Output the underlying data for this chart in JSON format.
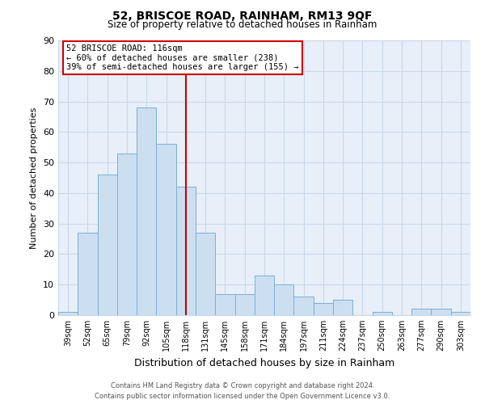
{
  "title": "52, BRISCOE ROAD, RAINHAM, RM13 9QF",
  "subtitle": "Size of property relative to detached houses in Rainham",
  "xlabel": "Distribution of detached houses by size in Rainham",
  "ylabel": "Number of detached properties",
  "bar_labels": [
    "39sqm",
    "52sqm",
    "65sqm",
    "79sqm",
    "92sqm",
    "105sqm",
    "118sqm",
    "131sqm",
    "145sqm",
    "158sqm",
    "171sqm",
    "184sqm",
    "197sqm",
    "211sqm",
    "224sqm",
    "237sqm",
    "250sqm",
    "263sqm",
    "277sqm",
    "290sqm",
    "303sqm"
  ],
  "bar_values": [
    1,
    27,
    46,
    53,
    68,
    56,
    42,
    27,
    7,
    7,
    13,
    10,
    6,
    4,
    5,
    0,
    1,
    0,
    2,
    2,
    1
  ],
  "bar_color": "#ccdff0",
  "bar_edge_color": "#7bafd4",
  "reference_line_index": 6,
  "reference_line_color": "#cc0000",
  "ylim": [
    0,
    90
  ],
  "yticks": [
    0,
    10,
    20,
    30,
    40,
    50,
    60,
    70,
    80,
    90
  ],
  "annotation_title": "52 BRISCOE ROAD: 116sqm",
  "annotation_line1": "← 60% of detached houses are smaller (238)",
  "annotation_line2": "39% of semi-detached houses are larger (155) →",
  "footer1": "Contains HM Land Registry data © Crown copyright and database right 2024.",
  "footer2": "Contains public sector information licensed under the Open Government Licence v3.0.",
  "background_color": "#ffffff",
  "grid_color": "#c8d8e8"
}
